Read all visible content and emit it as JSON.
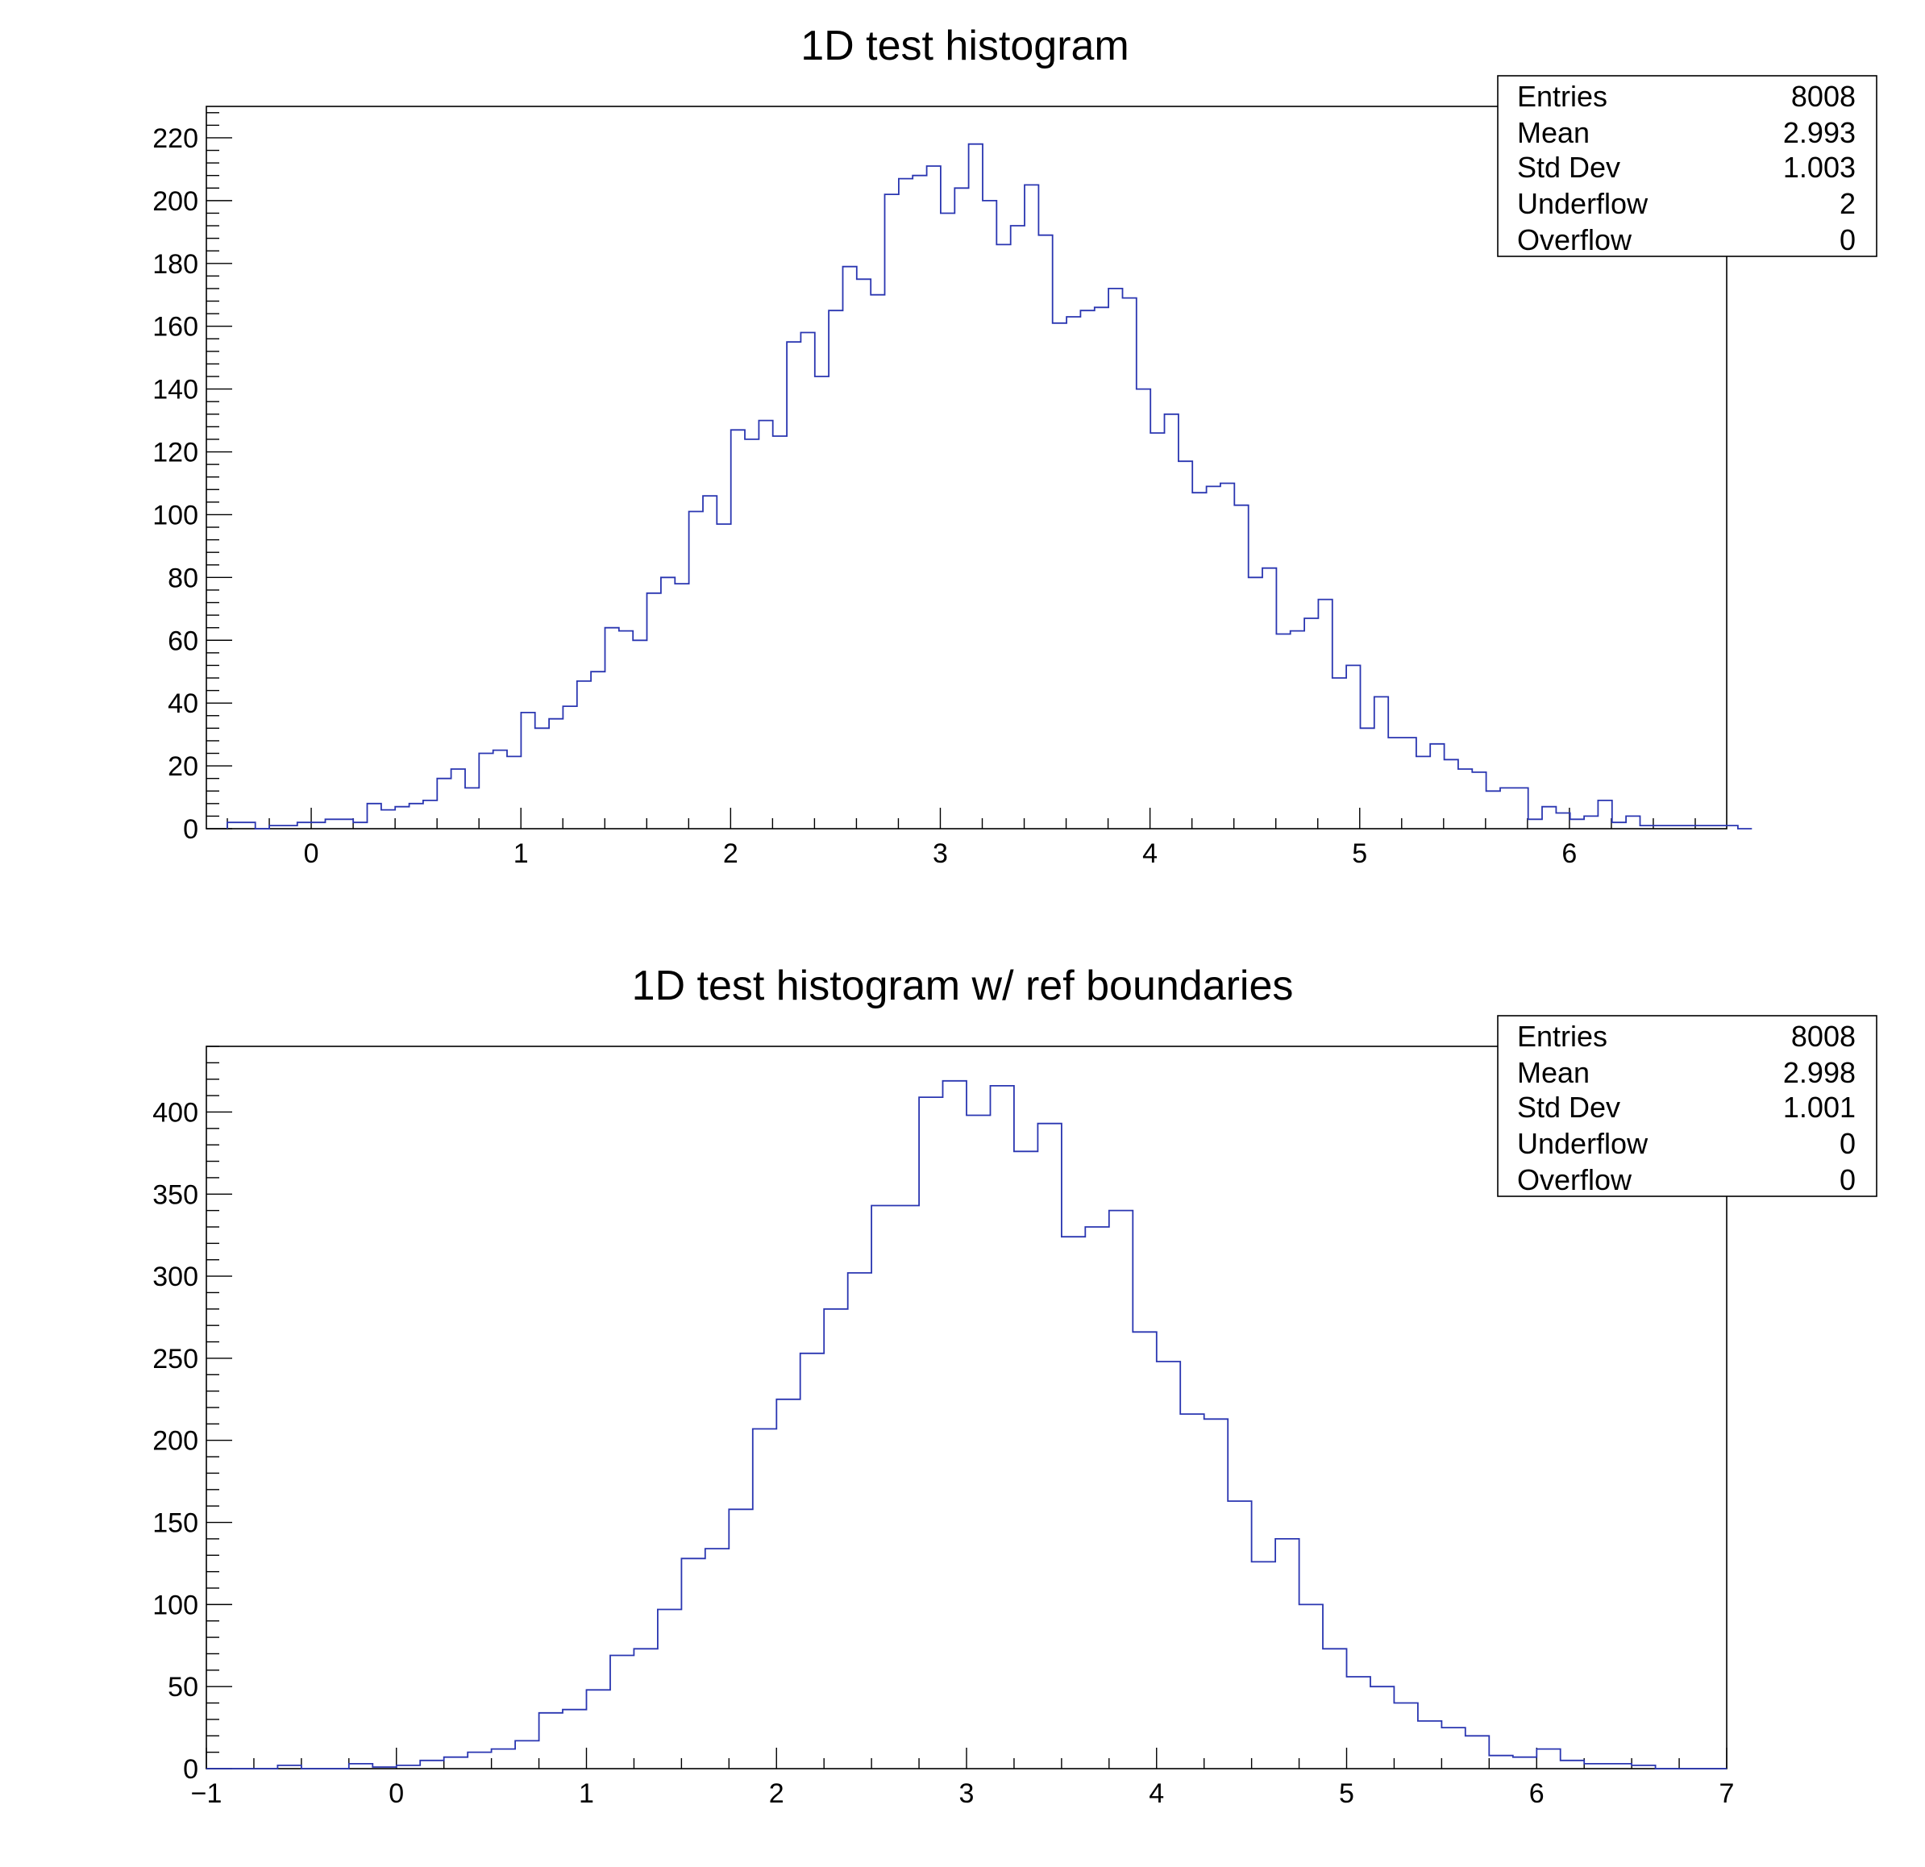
{
  "chart_data": [
    {
      "type": "histogram",
      "title": "1D test histogram",
      "xlabel": "",
      "ylabel": "",
      "xlim": [
        -0.5,
        6.75
      ],
      "ylim": [
        0,
        230
      ],
      "x_ticks": [
        "0",
        "1",
        "2",
        "3",
        "4",
        "5",
        "6"
      ],
      "y_ticks": [
        "0",
        "20",
        "40",
        "60",
        "80",
        "100",
        "120",
        "140",
        "160",
        "180",
        "200",
        "220"
      ],
      "bins_start": -0.4,
      "bin_width": 0.0667,
      "values": [
        2,
        2,
        0,
        1,
        1,
        2,
        2,
        3,
        3,
        2,
        8,
        6,
        7,
        8,
        9,
        16,
        19,
        13,
        24,
        25,
        23,
        37,
        32,
        35,
        39,
        47,
        50,
        64,
        63,
        60,
        75,
        80,
        78,
        101,
        106,
        97,
        127,
        124,
        130,
        125,
        155,
        158,
        144,
        165,
        179,
        175,
        170,
        202,
        207,
        208,
        211,
        196,
        204,
        218,
        200,
        186,
        192,
        205,
        189,
        161,
        163,
        165,
        166,
        172,
        169,
        140,
        126,
        132,
        117,
        107,
        109,
        110,
        103,
        80,
        83,
        62,
        63,
        67,
        73,
        48,
        52,
        32,
        42,
        29,
        29,
        23,
        27,
        22,
        19,
        18,
        12,
        13,
        13,
        3,
        7,
        5,
        3,
        4,
        9,
        2,
        4,
        1,
        1,
        1,
        1,
        1,
        1,
        1,
        0
      ],
      "stats": {
        "entries_label": "Entries",
        "entries": "8008",
        "mean_label": "Mean",
        "mean": "2.993",
        "stddev_label": "Std Dev",
        "stddev": "1.003",
        "underflow_label": "Underflow",
        "underflow": "2",
        "overflow_label": "Overflow",
        "overflow": "0"
      }
    },
    {
      "type": "histogram",
      "title": "1D test histogram w/ ref boundaries",
      "xlabel": "",
      "ylabel": "",
      "xlim": [
        -1,
        7
      ],
      "ylim": [
        0,
        440
      ],
      "x_ticks": [
        "−1",
        "0",
        "1",
        "2",
        "3",
        "4",
        "5",
        "6",
        "7"
      ],
      "y_ticks": [
        "0",
        "50",
        "100",
        "150",
        "200",
        "250",
        "300",
        "350",
        "400"
      ],
      "bins_start": -1,
      "bin_width": 0.125,
      "values": [
        0,
        0,
        0,
        2,
        0,
        0,
        3,
        1,
        2,
        5,
        7,
        10,
        12,
        17,
        34,
        36,
        48,
        69,
        73,
        97,
        128,
        134,
        158,
        207,
        225,
        253,
        280,
        302,
        343,
        343,
        409,
        419,
        398,
        416,
        376,
        393,
        324,
        330,
        340,
        266,
        248,
        216,
        213,
        163,
        126,
        140,
        100,
        73,
        56,
        50,
        40,
        29,
        25,
        20,
        8,
        7,
        12,
        5,
        3,
        3,
        2,
        0,
        0,
        0
      ]
    }
  ],
  "colors": {
    "line": "#2a36b1",
    "frame": "#000000",
    "background": "#ffffff"
  }
}
